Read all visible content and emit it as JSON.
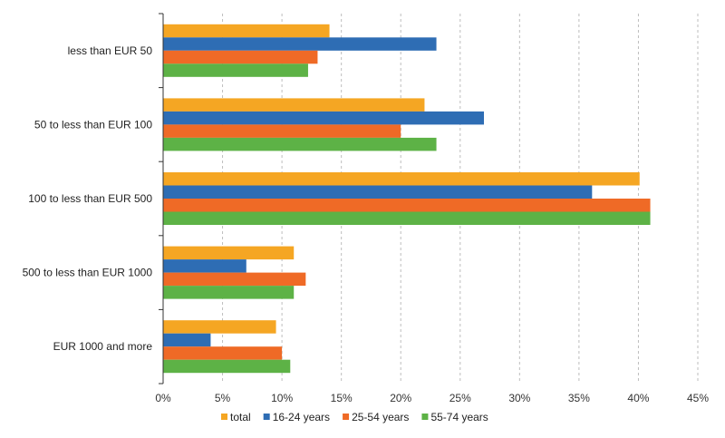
{
  "chart_data": {
    "type": "bar",
    "orientation": "horizontal",
    "categories": [
      "less than EUR 50",
      "50 to less than EUR 100",
      "100 to less than EUR 500",
      "500 to less than EUR 1000",
      "EUR 1000 and more"
    ],
    "series": [
      {
        "name": "total",
        "color": "#F5A623",
        "values": [
          14,
          22,
          40.1,
          11,
          9.5
        ]
      },
      {
        "name": "16-24 years",
        "color": "#2E6DB4",
        "values": [
          23,
          27,
          36.1,
          7,
          4
        ]
      },
      {
        "name": "25-54 years",
        "color": "#EF6A26",
        "values": [
          13,
          20,
          41,
          12,
          10
        ]
      },
      {
        "name": "55-74 years",
        "color": "#5DB246",
        "values": [
          12.2,
          23,
          41,
          11,
          10.7
        ]
      }
    ],
    "xlim": [
      0,
      45
    ],
    "xticks": [
      0,
      5,
      10,
      15,
      20,
      25,
      30,
      35,
      40,
      45
    ],
    "xtick_labels": [
      "0%",
      "5%",
      "10%",
      "15%",
      "20%",
      "25%",
      "30%",
      "35%",
      "40%",
      "45%"
    ],
    "grid": "vertical dashed",
    "legend_position": "bottom"
  }
}
